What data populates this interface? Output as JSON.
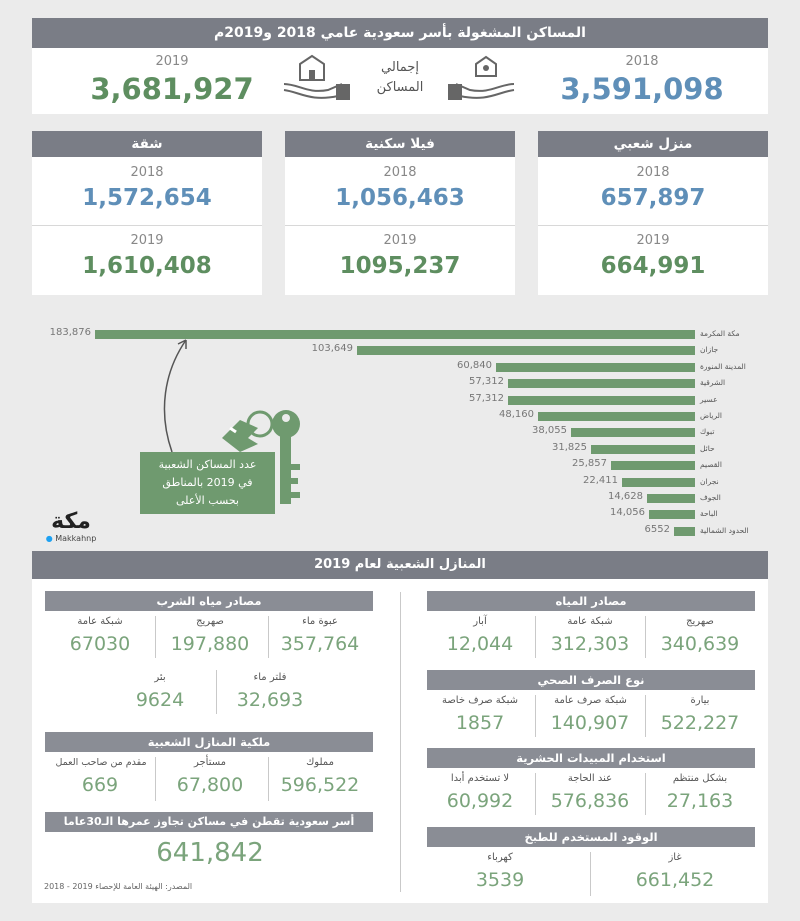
{
  "title": "المساكن المشغولة بأسر سعودية عامي 2018 و2019م",
  "total": {
    "label_line1": "إجمالي",
    "label_line2": "المساكن",
    "year_2018": "2018",
    "value_2018": "3,591,098",
    "year_2019": "2019",
    "value_2019": "3,681,927"
  },
  "types": [
    {
      "name": "منزل شعبي",
      "y2018": "2018",
      "v2018": "657,897",
      "y2019": "2019",
      "v2019": "664,991"
    },
    {
      "name": "فيلا سكنية",
      "y2018": "2018",
      "v2018": "1,056,463",
      "y2019": "2019",
      "v2019": "1095,237"
    },
    {
      "name": "شقة",
      "y2018": "2018",
      "v2018": "1,572,654",
      "y2019": "2019",
      "v2019": "1,610,408"
    }
  ],
  "chart_data": {
    "type": "bar",
    "orientation": "horizontal",
    "title": "",
    "categories": [
      "مكة المكرمة",
      "جازان",
      "المدينة المنورة",
      "الشرقية",
      "عسير",
      "الرياض",
      "تبوك",
      "حائل",
      "القصيم",
      "نجران",
      "الجوف",
      "الباحة",
      "الحدود الشمالية"
    ],
    "values": [
      183876,
      103649,
      60840,
      57312,
      57312,
      48160,
      38055,
      31825,
      25857,
      22411,
      14628,
      14056,
      6552
    ],
    "value_labels": [
      "183,876",
      "103,649",
      "60,840",
      "57,312",
      "57,312",
      "48,160",
      "38,055",
      "31,825",
      "25,857",
      "22,411",
      "14,628",
      "14,056",
      "6552"
    ],
    "xlim": [
      0,
      183876
    ]
  },
  "callout": {
    "line1": "عدد المساكن الشعبية",
    "line2": "في 2019 بالمناطق",
    "line3": "بحسب الأعلى"
  },
  "logo": {
    "name": "مكة",
    "handle": "Makkahnp"
  },
  "colors": {
    "accent_blue": "#5f8fb8",
    "accent_green": "#5e8e60",
    "bar": "#6f9a6f",
    "header": "#7a7d86"
  },
  "section2": {
    "title": "المنازل الشعبية لعام 2019",
    "drinking": {
      "title": "مصادر مياه الشرب",
      "items": [
        {
          "label": "عبوة ماء",
          "value": "357,764"
        },
        {
          "label": "صهريج",
          "value": "197,880"
        },
        {
          "label": "شبكة عامة",
          "value": "67030"
        },
        {
          "label": "فلتر ماء",
          "value": "32,693"
        },
        {
          "label": "بئر",
          "value": "9624"
        }
      ]
    },
    "ownership": {
      "title": "ملكية المنازل الشعبية",
      "items": [
        {
          "label": "مملوك",
          "value": "596,522"
        },
        {
          "label": "مستأجر",
          "value": "67,800"
        },
        {
          "label": "مقدم من صاحب العمل",
          "value": "669"
        }
      ]
    },
    "old_houses": {
      "title": "أسر سعودية تقطن في مساكن تجاوز عمرها الـ30عاما",
      "value": "641,842"
    },
    "source": "المصدر: الهيئة العامة للإحصاء 2019 - 2018",
    "water": {
      "title": "مصادر المياه",
      "items": [
        {
          "label": "صهريج",
          "value": "340,639"
        },
        {
          "label": "شبكة عامة",
          "value": "312,303"
        },
        {
          "label": "آبار",
          "value": "12,044"
        }
      ]
    },
    "sewage": {
      "title": "نوع الصرف الصحي",
      "items": [
        {
          "label": "بيارة",
          "value": "522,227"
        },
        {
          "label": "شبكة صرف عامة",
          "value": "140,907"
        },
        {
          "label": "شبكة صرف خاصة",
          "value": "1857"
        }
      ]
    },
    "pesticides": {
      "title": "استخدام المبيدات الحشرية",
      "items": [
        {
          "label": "بشكل منتظم",
          "value": "27,163"
        },
        {
          "label": "عند الحاجة",
          "value": "576,836"
        },
        {
          "label": "لا تستخدم أبدا",
          "value": "60,992"
        }
      ]
    },
    "fuel": {
      "title": "الوقود المستخدم للطبخ",
      "items": [
        {
          "label": "غاز",
          "value": "661,452"
        },
        {
          "label": "كهرباء",
          "value": "3539"
        }
      ]
    }
  }
}
